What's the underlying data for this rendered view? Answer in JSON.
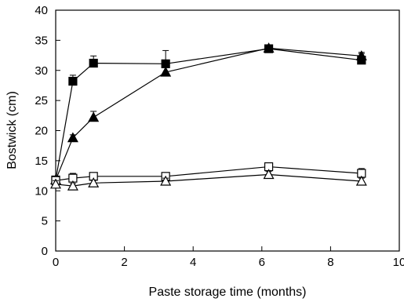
{
  "chart_data": {
    "type": "line",
    "title": "",
    "xlabel": "Paste storage time (months)",
    "ylabel": "Bostwick (cm)",
    "xlim": [
      0,
      10
    ],
    "ylim": [
      0,
      40
    ],
    "xticks": [
      0,
      2,
      4,
      6,
      8,
      10
    ],
    "yticks": [
      0,
      5,
      10,
      15,
      20,
      25,
      30,
      35,
      40
    ],
    "xtick_labels": [
      "0",
      "2",
      "4",
      "6",
      "8",
      "10"
    ],
    "ytick_labels": [
      "0",
      "5",
      "10",
      "15",
      "20",
      "25",
      "30",
      "35",
      "40"
    ],
    "grid": false,
    "legend": "none",
    "series": [
      {
        "marker": "filled-square",
        "x": [
          0,
          0.5,
          1.1,
          3.2,
          6.2,
          8.9
        ],
        "y": [
          11.8,
          28.2,
          31.2,
          31.1,
          33.6,
          31.7
        ],
        "err": [
          0.5,
          1.0,
          1.2,
          2.2,
          0.4,
          1.1
        ]
      },
      {
        "marker": "filled-triangle",
        "x": [
          0,
          0.5,
          1.1,
          3.2,
          6.2,
          8.9
        ],
        "y": [
          11.8,
          18.8,
          22.2,
          29.7,
          33.7,
          32.4
        ],
        "err": [
          0.5,
          0.5,
          1.0,
          0.8,
          0.4,
          0.6
        ]
      },
      {
        "marker": "open-square",
        "x": [
          0,
          0.5,
          1.1,
          3.2,
          6.2,
          8.9
        ],
        "y": [
          11.7,
          12.1,
          12.4,
          12.4,
          14.0,
          12.9
        ],
        "err": [
          0.5,
          0.8,
          0.5,
          0.5,
          0.5,
          0.8
        ]
      },
      {
        "marker": "open-triangle",
        "x": [
          0,
          0.5,
          1.1,
          3.2,
          6.2,
          8.9
        ],
        "y": [
          11.1,
          10.8,
          11.3,
          11.6,
          12.7,
          11.6
        ],
        "err": [
          0.6,
          0.4,
          0.5,
          0.5,
          0.5,
          0.5
        ]
      }
    ]
  }
}
